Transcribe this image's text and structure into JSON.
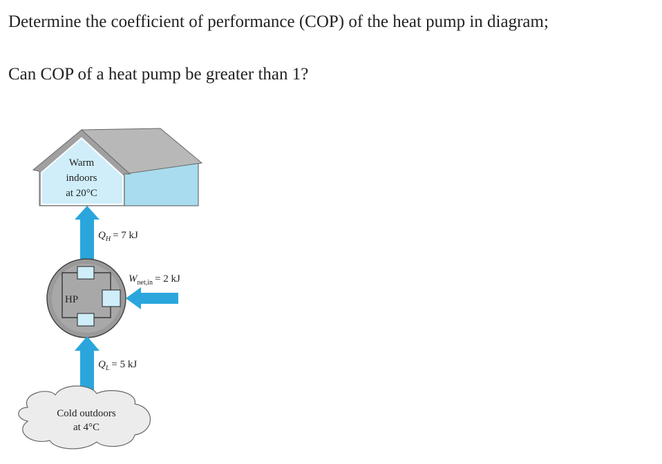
{
  "question": {
    "line1": "Determine the coefficient of performance (COP) of the heat pump in diagram;",
    "line2": "Can COP of a heat pump be greater than 1?"
  },
  "diagram": {
    "indoors": {
      "lines": [
        "Warm",
        "indoors",
        "at 20°C"
      ]
    },
    "heat_out": {
      "symbol": "Q",
      "subscript": "H",
      "rest": "= 7 kJ"
    },
    "work_in": {
      "symbol": "W",
      "subscript": "net,in",
      "rest": "= 2 kJ"
    },
    "heat_pump": {
      "label": "HP"
    },
    "heat_in": {
      "symbol": "Q",
      "subscript": "L",
      "rest": "= 5 kJ"
    },
    "outdoors": {
      "lines": [
        "Cold outdoors",
        "at 4°C"
      ]
    }
  }
}
